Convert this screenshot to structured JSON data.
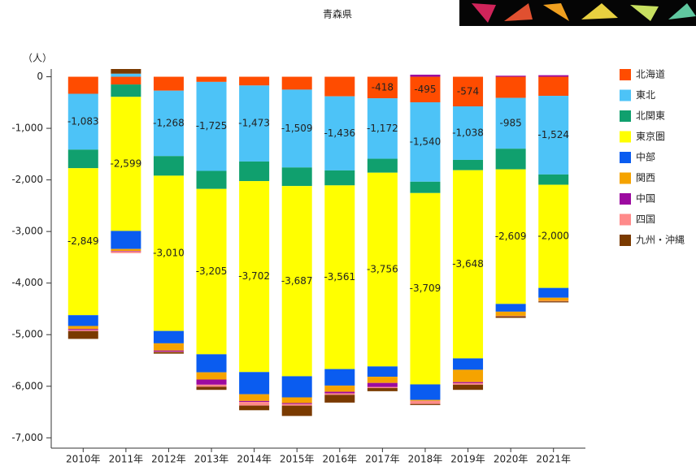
{
  "chart_data": {
    "type": "stacked_bar",
    "title": "青森県",
    "y_label": "（人）",
    "categories": [
      "2010年",
      "2011年",
      "2012年",
      "2013年",
      "2014年",
      "2015年",
      "2016年",
      "2017年",
      "2018年",
      "2019年",
      "2020年",
      "2021年"
    ],
    "ylim": [
      -7200,
      150
    ],
    "yticks": [
      {
        "value": 0,
        "label": "0"
      },
      {
        "value": -1000,
        "label": "-1,000"
      },
      {
        "value": -2000,
        "label": "-2,000"
      },
      {
        "value": -3000,
        "label": "-3,000"
      },
      {
        "value": -4000,
        "label": "-4,000"
      },
      {
        "value": -5000,
        "label": "-5,000"
      },
      {
        "value": -6000,
        "label": "-6,000"
      },
      {
        "value": -7000,
        "label": "-7,000"
      }
    ],
    "series": [
      {
        "name": "北海道",
        "color": "#ff4c00",
        "values": [
          -330,
          -150,
          -270,
          -100,
          -170,
          -250,
          -380,
          -418,
          -495,
          -574,
          -410,
          -370
        ],
        "value_labels": [
          null,
          null,
          null,
          null,
          null,
          null,
          null,
          "-418",
          "-495",
          "-574",
          null,
          null
        ]
      },
      {
        "name": "東北",
        "color": "#4dc3f7",
        "values": [
          -1083,
          60,
          -1268,
          -1725,
          -1473,
          -1509,
          -1436,
          -1172,
          -1540,
          -1038,
          -985,
          -1524
        ],
        "value_labels": [
          "-1,083",
          null,
          "-1,268",
          "-1,725",
          "-1,473",
          "-1,509",
          "-1,436",
          "-1,172",
          "-1,540",
          "-1,038",
          "-985",
          "-1,524"
        ]
      },
      {
        "name": "北関東",
        "color": "#10a06e",
        "values": [
          -360,
          -240,
          -380,
          -350,
          -380,
          -360,
          -290,
          -270,
          -220,
          -200,
          -400,
          -200
        ]
      },
      {
        "name": "東京圏",
        "color": "#ffff00",
        "values": [
          -2849,
          -2599,
          -3010,
          -3205,
          -3702,
          -3687,
          -3561,
          -3756,
          -3709,
          -3648,
          -2609,
          -2000
        ],
        "value_labels": [
          "-2,849",
          "-2,599",
          "-3,010",
          "-3,205",
          "-3,702",
          "-3,687",
          "-3,561",
          "-3,756",
          "-3,709",
          "-3,648",
          "-2,609",
          "-2,000"
        ]
      },
      {
        "name": "中部",
        "color": "#0a5cf0",
        "values": [
          -210,
          -350,
          -240,
          -350,
          -430,
          -410,
          -320,
          -200,
          -300,
          -220,
          -150,
          -190
        ]
      },
      {
        "name": "関西",
        "color": "#f5a300",
        "values": [
          -60,
          -40,
          -140,
          -140,
          -130,
          -110,
          -120,
          -120,
          -20,
          -240,
          -80,
          -60
        ]
      },
      {
        "name": "中国",
        "color": "#9c0aa0",
        "values": [
          -20,
          -10,
          -20,
          -100,
          -20,
          -20,
          -30,
          -80,
          40,
          -20,
          20,
          30
        ]
      },
      {
        "name": "四国",
        "color": "#ff8a8a",
        "values": [
          -20,
          -30,
          -10,
          -40,
          -70,
          -30,
          -30,
          -20,
          -60,
          -30,
          -10,
          -10
        ]
      },
      {
        "name": "九州・沖縄",
        "color": "#7a3a00",
        "values": [
          -150,
          90,
          -30,
          -60,
          -90,
          -200,
          -150,
          -60,
          -20,
          -100,
          -30,
          -20
        ]
      }
    ]
  }
}
